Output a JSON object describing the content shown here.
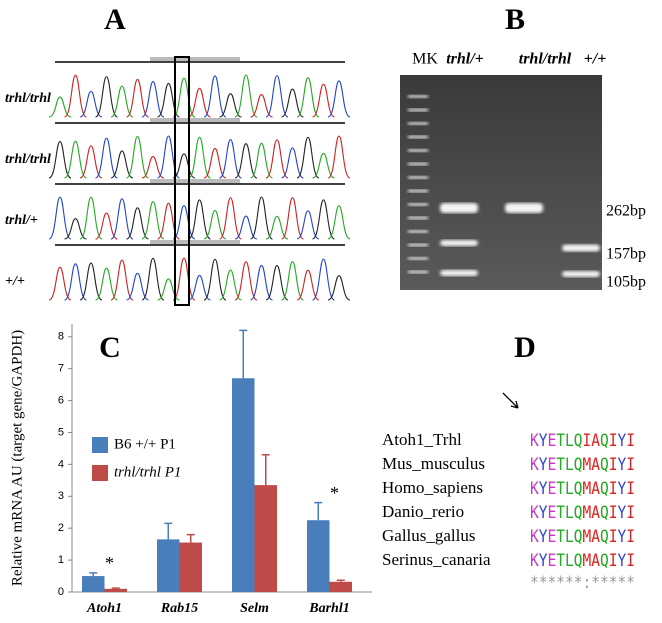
{
  "panel_labels": [
    "A",
    "B",
    "C",
    "D"
  ],
  "panel_a": {
    "genotypes": [
      "trhl/trhl",
      "trhl/trhl",
      "trhl/+",
      "+/+"
    ]
  },
  "panel_b": {
    "lanes": [
      "MK",
      "trhl/+",
      "trhl/trhl",
      "+/+"
    ],
    "sizes": [
      "262bp",
      "157bp",
      "105bp"
    ]
  },
  "chart_data": {
    "type": "bar",
    "ylabel": "Relative mRNA AU (target gene/GAPDH)",
    "categories": [
      "Atoh1",
      "Rab15",
      "Selm",
      "Barhl1"
    ],
    "series": [
      {
        "name": "B6 +/+ P1",
        "color": "#4a7ebb",
        "values": [
          0.5,
          1.65,
          6.7,
          2.25
        ],
        "errors": [
          0.1,
          0.5,
          1.5,
          0.55
        ]
      },
      {
        "name": "trhl/trhl P1",
        "color": "#be4b48",
        "values": [
          0.1,
          1.55,
          3.35,
          0.32
        ],
        "errors": [
          0.02,
          0.25,
          0.95,
          0.05
        ]
      }
    ],
    "ylim": [
      0,
      8.4
    ],
    "yticks": [
      0,
      1,
      2,
      3,
      4,
      5,
      6,
      7,
      8
    ],
    "annotations": [
      "*",
      "*"
    ]
  },
  "panel_d": {
    "species": [
      "Atoh1_Trhl",
      "Mus_musculus",
      "Homo_sapiens",
      "Danio_rerio",
      "Gallus_gallus",
      "Serinus_canaria"
    ],
    "sequences": [
      "KYETLQIAQIYI",
      "KYETLQMAQIYI",
      "KYETLQMAQIYI",
      "KYETLQMAQIYI",
      "KYETLQMAQIYI",
      "KYETLQMAQIYI"
    ],
    "conservation": "******:*****",
    "residue_colors": {
      "K": "#cc33cc",
      "E": "#cc33cc",
      "Y": "#3344cc",
      "T": "#22aa22",
      "L": "#22aa22",
      "Q": "#22aa22",
      "I": "#dd2222",
      "M": "#dd2222",
      "A": "#dd2222"
    }
  }
}
